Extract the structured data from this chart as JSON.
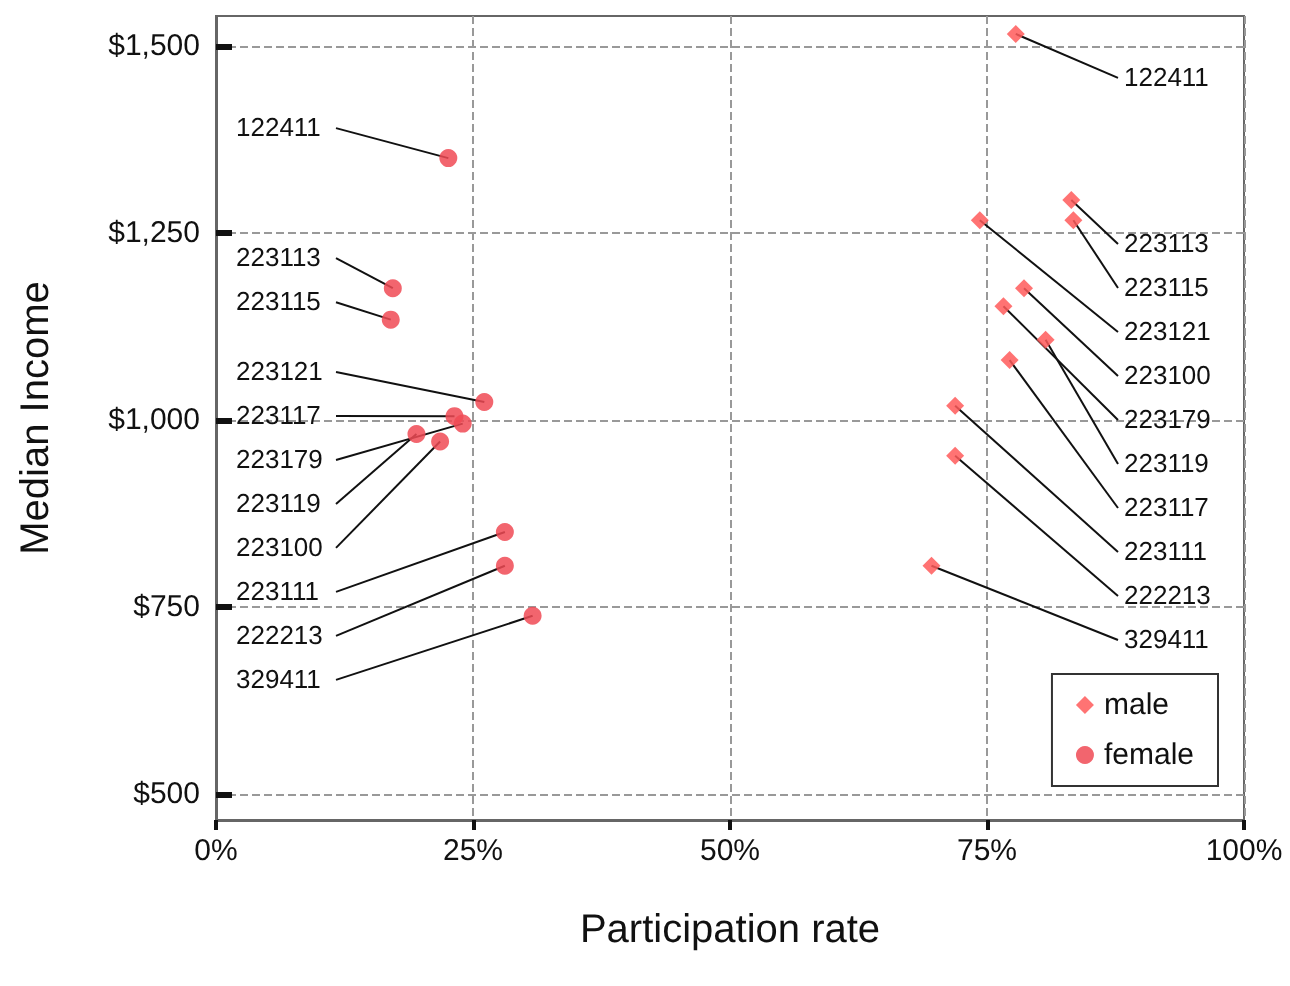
{
  "chart_data": {
    "type": "scatter",
    "xlabel": "Participation rate",
    "ylabel": "Median Income",
    "xlim": [
      0,
      100
    ],
    "xticks": [
      {
        "value": 0,
        "label": "0%"
      },
      {
        "value": 25,
        "label": "25%"
      },
      {
        "value": 50,
        "label": "50%"
      },
      {
        "value": 75,
        "label": "75%"
      },
      {
        "value": 100,
        "label": "100%"
      }
    ],
    "ylim": [
      465,
      1540
    ],
    "yticks": [
      {
        "value": 500,
        "label": "$500"
      },
      {
        "value": 750,
        "label": "$750"
      },
      {
        "value": 1000,
        "label": "$1,000"
      },
      {
        "value": 1250,
        "label": "$1,250"
      },
      {
        "value": 1500,
        "label": "$1,500"
      }
    ],
    "grid": true,
    "legend": "bottom right",
    "series": [
      {
        "name": "male",
        "color": "#ff5a5a",
        "marker": "diamond",
        "x": [
          77.8,
          83.2,
          83.4,
          74.3,
          78.6,
          76.6,
          80.7,
          77.2,
          71.9,
          71.9,
          69.6
        ],
        "values": [
          1516,
          1294,
          1267,
          1267,
          1176,
          1152,
          1107,
          1080,
          1019,
          952,
          805
        ]
      },
      {
        "name": "female",
        "color": "#f04a55",
        "marker": "circle",
        "x": [
          22.6,
          17.2,
          17.0,
          26.1,
          23.2,
          24.0,
          19.5,
          21.8,
          28.1,
          28.1,
          30.8
        ],
        "values": [
          1350,
          1176,
          1134,
          1024,
          1005,
          995,
          981,
          971,
          850,
          805,
          738
        ]
      }
    ],
    "annotations": [
      {
        "text": "122411",
        "x": 77.8,
        "y": 1516
      },
      {
        "text": "223113",
        "x": 83.2,
        "y": 1294
      },
      {
        "text": "223115",
        "x": 83.4,
        "y": 1267
      },
      {
        "text": "223121",
        "x": 74.3,
        "y": 1267
      },
      {
        "text": "223100",
        "x": 78.6,
        "y": 1176
      },
      {
        "text": "223179",
        "x": 76.6,
        "y": 1152
      },
      {
        "text": "223119",
        "x": 80.7,
        "y": 1107
      },
      {
        "text": "223117",
        "x": 77.2,
        "y": 1080
      },
      {
        "text": "223111",
        "x": 71.9,
        "y": 1019
      },
      {
        "text": "222213",
        "x": 71.9,
        "y": 952
      },
      {
        "text": "329411",
        "x": 69.6,
        "y": 805
      },
      {
        "text": "122411",
        "x": 22.6,
        "y": 1350
      },
      {
        "text": "223113",
        "x": 17.2,
        "y": 1176
      },
      {
        "text": "223115",
        "x": 17.0,
        "y": 1134
      },
      {
        "text": "223121",
        "x": 26.1,
        "y": 1024
      },
      {
        "text": "223117",
        "x": 23.2,
        "y": 1005
      },
      {
        "text": "223179",
        "x": 24.0,
        "y": 995
      },
      {
        "text": "223119",
        "x": 19.5,
        "y": 981
      },
      {
        "text": "223100",
        "x": 21.8,
        "y": 971
      },
      {
        "text": "223111",
        "x": 28.1,
        "y": 850
      },
      {
        "text": "222213",
        "x": 28.1,
        "y": 805
      },
      {
        "text": "329411",
        "x": 30.8,
        "y": 738
      }
    ]
  }
}
